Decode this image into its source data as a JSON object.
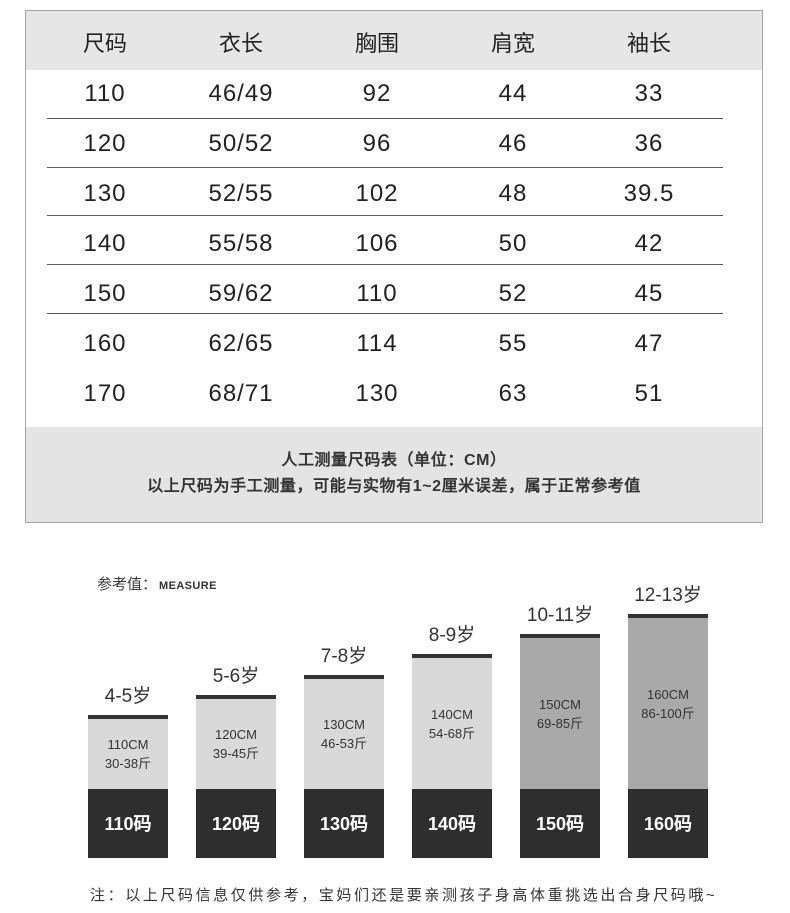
{
  "size_table": {
    "headers": [
      "尺码",
      "衣长",
      "胸围",
      "肩宽",
      "袖长"
    ],
    "rows": [
      [
        "110",
        "46/49",
        "92",
        "44",
        "33"
      ],
      [
        "120",
        "50/52",
        "96",
        "46",
        "36"
      ],
      [
        "130",
        "52/55",
        "102",
        "48",
        "39.5"
      ],
      [
        "140",
        "55/58",
        "106",
        "50",
        "42"
      ],
      [
        "150",
        "59/62",
        "110",
        "52",
        "45"
      ],
      [
        "160",
        "62/65",
        "114",
        "55",
        "47"
      ],
      [
        "170",
        "68/71",
        "130",
        "63",
        "51"
      ]
    ],
    "footer_title": "人工测量尺码表（单位：CM）",
    "footer_note": "以上尺码为手工测量，可能与实物有1~2厘米误差，属于正常参考值"
  },
  "reference": {
    "label": "参考值：",
    "label_en": "MEASURE",
    "columns": [
      {
        "age": "4-5岁",
        "height": "110CM",
        "weight": "30-38斤",
        "size": "110码",
        "fill": "#d9d9d9"
      },
      {
        "age": "5-6岁",
        "height": "120CM",
        "weight": "39-45斤",
        "size": "120码",
        "fill": "#d9d9d9"
      },
      {
        "age": "7-8岁",
        "height": "130CM",
        "weight": "46-53斤",
        "size": "130码",
        "fill": "#d9d9d9"
      },
      {
        "age": "8-9岁",
        "height": "140CM",
        "weight": "54-68斤",
        "size": "140码",
        "fill": "#d9d9d9"
      },
      {
        "age": "10-11岁",
        "height": "150CM",
        "weight": "69-85斤",
        "size": "150码",
        "fill": "#a9a9a9"
      },
      {
        "age": "12-13岁",
        "height": "160CM",
        "weight": "86-100斤",
        "size": "160码",
        "fill": "#a9a9a9"
      }
    ]
  },
  "note": "注：以上尺码信息仅供参考，宝妈们还是要亲测孩子身高体重挑选出合身尺码哦~"
}
